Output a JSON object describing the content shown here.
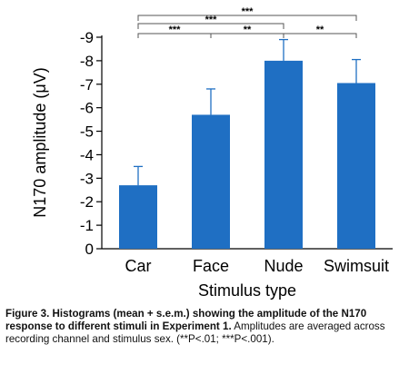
{
  "chart_data": {
    "type": "bar",
    "categories": [
      "Car",
      "Face",
      "Nude",
      "Swimsuit"
    ],
    "values": [
      -2.7,
      -5.7,
      -8.0,
      -7.05
    ],
    "errors": [
      0.8,
      1.1,
      0.9,
      1.0
    ],
    "ylabel": "N170 amplitude (μV)",
    "xlabel": "Stimulus type",
    "ylim": [
      0,
      -9
    ],
    "yticks": [
      "0",
      "-1",
      "-2",
      "-3",
      "-4",
      "-5",
      "-6",
      "-7",
      "-8",
      "-9"
    ],
    "bar_color": "#1f6fc3",
    "grid": false,
    "significance": [
      {
        "from": "Car",
        "to": "Swimsuit",
        "label": "***"
      },
      {
        "from": "Car",
        "to": "Nude",
        "label": "***"
      },
      {
        "from": "Car",
        "to": "Face",
        "label": "***"
      },
      {
        "from": "Face",
        "to": "Nude",
        "label": "**"
      },
      {
        "from": "Nude",
        "to": "Swimsuit",
        "label": "**"
      }
    ]
  },
  "caption": {
    "heading": "Figure 3. Histograms (mean + s.e.m.) showing the amplitude of the N170 response to different stimuli in Experiment 1.",
    "body": "Amplitudes are averaged across recording channel and stimulus sex. (**P<.01; ***P<.001)."
  }
}
